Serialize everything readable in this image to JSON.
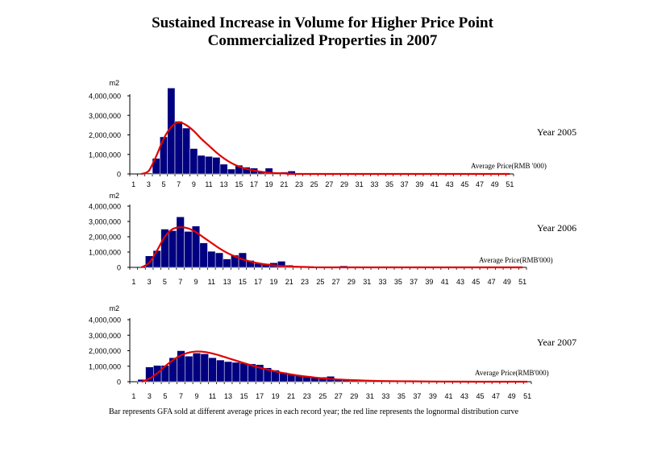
{
  "title_line1": "Sustained Increase in Volume for Higher Price Point",
  "title_line2": "Commercialized Properties in 2007",
  "caption": "Bar represents GFA sold at different average prices in each record year; the red line represents the lognormal distribution curve",
  "colors": {
    "bar": "#000080",
    "curve": "#e00000",
    "axis": "#000000"
  },
  "chart_data": [
    {
      "type": "bar",
      "panel_label": "Year 2005",
      "ylabel": "m2",
      "xlabel": "Average Price(RMB '000)",
      "ylim": [
        0,
        4000000
      ],
      "yticks": [
        "0",
        "1,000,000",
        "2,000,000",
        "3,000,000",
        "4,000,000"
      ],
      "xticks": [
        "1",
        "3",
        "5",
        "7",
        "9",
        "11",
        "13",
        "15",
        "17",
        "19",
        "21",
        "23",
        "25",
        "27",
        "29",
        "31",
        "33",
        "35",
        "37",
        "39",
        "41",
        "43",
        "45",
        "47",
        "49",
        "51"
      ],
      "x": [
        1,
        2,
        3,
        4,
        5,
        6,
        7,
        8,
        9,
        10,
        11,
        12,
        13,
        14,
        15,
        16,
        17,
        18,
        19,
        20,
        21,
        22,
        23,
        24,
        25,
        26,
        27,
        28,
        29,
        30,
        31,
        32,
        33,
        34,
        35,
        36,
        37,
        38,
        39,
        40,
        41,
        42,
        43,
        44,
        45,
        46,
        47,
        48,
        49,
        50,
        51
      ],
      "values": [
        0,
        0,
        50000,
        800000,
        1900000,
        4400000,
        2700000,
        2350000,
        1300000,
        950000,
        900000,
        850000,
        500000,
        250000,
        450000,
        350000,
        300000,
        100000,
        300000,
        50000,
        100000,
        150000,
        50000,
        0,
        0,
        0,
        0,
        0,
        0,
        0,
        0,
        0,
        0,
        0,
        0,
        0,
        0,
        0,
        0,
        0,
        0,
        0,
        0,
        0,
        0,
        0,
        0,
        0,
        0,
        0,
        0
      ],
      "curve": [
        [
          2,
          0
        ],
        [
          3,
          150000
        ],
        [
          4,
          900000
        ],
        [
          5,
          1800000
        ],
        [
          6,
          2400000
        ],
        [
          7,
          2650000
        ],
        [
          8,
          2500000
        ],
        [
          9,
          2200000
        ],
        [
          10,
          1800000
        ],
        [
          11,
          1450000
        ],
        [
          12,
          1100000
        ],
        [
          13,
          800000
        ],
        [
          14,
          560000
        ],
        [
          15,
          380000
        ],
        [
          16,
          260000
        ],
        [
          17,
          170000
        ],
        [
          18,
          110000
        ],
        [
          19,
          70000
        ],
        [
          20,
          40000
        ],
        [
          22,
          15000
        ],
        [
          24,
          0
        ],
        [
          51,
          0
        ]
      ]
    },
    {
      "type": "bar",
      "panel_label": "Year 2006",
      "ylabel": "m2",
      "xlabel": "Average Price(RMB'000)",
      "ylim": [
        0,
        4000000
      ],
      "yticks": [
        "0",
        "1,000,000",
        "2,000,000",
        "3,000,000",
        "4,000,000"
      ],
      "xticks": [
        "1",
        "3",
        "5",
        "7",
        "9",
        "11",
        "13",
        "15",
        "17",
        "19",
        "21",
        "23",
        "25",
        "27",
        "29",
        "31",
        "33",
        "35",
        "37",
        "39",
        "41",
        "43",
        "45",
        "47",
        "49",
        "51"
      ],
      "x": [
        1,
        2,
        3,
        4,
        5,
        6,
        7,
        8,
        9,
        10,
        11,
        12,
        13,
        14,
        15,
        16,
        17,
        18,
        19,
        20,
        21,
        22,
        23,
        24,
        25,
        26,
        27,
        28,
        29,
        30,
        31,
        32,
        33,
        34,
        35,
        36,
        37,
        38,
        39,
        40,
        41,
        42,
        43,
        44,
        45,
        46,
        47,
        48,
        49,
        50,
        51
      ],
      "values": [
        0,
        0,
        750000,
        1100000,
        2500000,
        2400000,
        3300000,
        2350000,
        2700000,
        1600000,
        1050000,
        950000,
        550000,
        800000,
        950000,
        450000,
        250000,
        250000,
        300000,
        400000,
        150000,
        50000,
        50000,
        50000,
        50000,
        0,
        50000,
        100000,
        0,
        0,
        0,
        0,
        0,
        0,
        0,
        0,
        0,
        0,
        0,
        0,
        0,
        0,
        0,
        0,
        0,
        0,
        0,
        0,
        0,
        0,
        0
      ],
      "curve": [
        [
          2,
          0
        ],
        [
          3,
          300000
        ],
        [
          4,
          1100000
        ],
        [
          5,
          2000000
        ],
        [
          6,
          2500000
        ],
        [
          7,
          2620000
        ],
        [
          8,
          2550000
        ],
        [
          9,
          2300000
        ],
        [
          10,
          1950000
        ],
        [
          11,
          1600000
        ],
        [
          12,
          1250000
        ],
        [
          13,
          950000
        ],
        [
          14,
          720000
        ],
        [
          15,
          530000
        ],
        [
          16,
          380000
        ],
        [
          17,
          270000
        ],
        [
          18,
          190000
        ],
        [
          19,
          130000
        ],
        [
          20,
          90000
        ],
        [
          22,
          40000
        ],
        [
          24,
          15000
        ],
        [
          26,
          0
        ],
        [
          51,
          0
        ]
      ]
    },
    {
      "type": "bar",
      "panel_label": "Year 2007",
      "ylabel": "m2",
      "xlabel": "Average Price(RMB'000)",
      "ylim": [
        0,
        4000000
      ],
      "yticks": [
        "0",
        "1,000,000",
        "2,000,000",
        "3,000,000",
        "4,000,000"
      ],
      "xticks": [
        "1",
        "3",
        "5",
        "7",
        "9",
        "11",
        "13",
        "15",
        "17",
        "19",
        "21",
        "23",
        "25",
        "27",
        "29",
        "31",
        "33",
        "35",
        "37",
        "39",
        "41",
        "43",
        "45",
        "47",
        "49",
        "51"
      ],
      "x": [
        1,
        2,
        3,
        4,
        5,
        6,
        7,
        8,
        9,
        10,
        11,
        12,
        13,
        14,
        15,
        16,
        17,
        18,
        19,
        20,
        21,
        22,
        23,
        24,
        25,
        26,
        27,
        28,
        29,
        30,
        31,
        32,
        33,
        34,
        35,
        36,
        37,
        38,
        39,
        40,
        41,
        42,
        43,
        44,
        45,
        46,
        47,
        48,
        49,
        50,
        51
      ],
      "values": [
        0,
        150000,
        950000,
        1050000,
        1050000,
        1550000,
        2000000,
        1650000,
        1850000,
        1800000,
        1550000,
        1400000,
        1300000,
        1250000,
        1200000,
        1150000,
        1100000,
        900000,
        750000,
        600000,
        500000,
        400000,
        350000,
        300000,
        300000,
        350000,
        200000,
        150000,
        150000,
        100000,
        50000,
        50000,
        50000,
        50000,
        50000,
        50000,
        50000,
        50000,
        50000,
        50000,
        50000,
        50000,
        50000,
        50000,
        50000,
        50000,
        0,
        0,
        0,
        0,
        0
      ],
      "curve": [
        [
          2,
          0
        ],
        [
          3,
          200000
        ],
        [
          4,
          550000
        ],
        [
          5,
          1000000
        ],
        [
          6,
          1400000
        ],
        [
          7,
          1700000
        ],
        [
          8,
          1880000
        ],
        [
          9,
          1950000
        ],
        [
          10,
          1920000
        ],
        [
          11,
          1820000
        ],
        [
          12,
          1680000
        ],
        [
          13,
          1520000
        ],
        [
          14,
          1360000
        ],
        [
          15,
          1200000
        ],
        [
          16,
          1050000
        ],
        [
          17,
          910000
        ],
        [
          18,
          780000
        ],
        [
          19,
          660000
        ],
        [
          20,
          560000
        ],
        [
          21,
          470000
        ],
        [
          22,
          390000
        ],
        [
          24,
          270000
        ],
        [
          26,
          180000
        ],
        [
          28,
          120000
        ],
        [
          30,
          80000
        ],
        [
          32,
          50000
        ],
        [
          35,
          30000
        ],
        [
          40,
          10000
        ],
        [
          45,
          0
        ],
        [
          51,
          0
        ]
      ]
    }
  ]
}
